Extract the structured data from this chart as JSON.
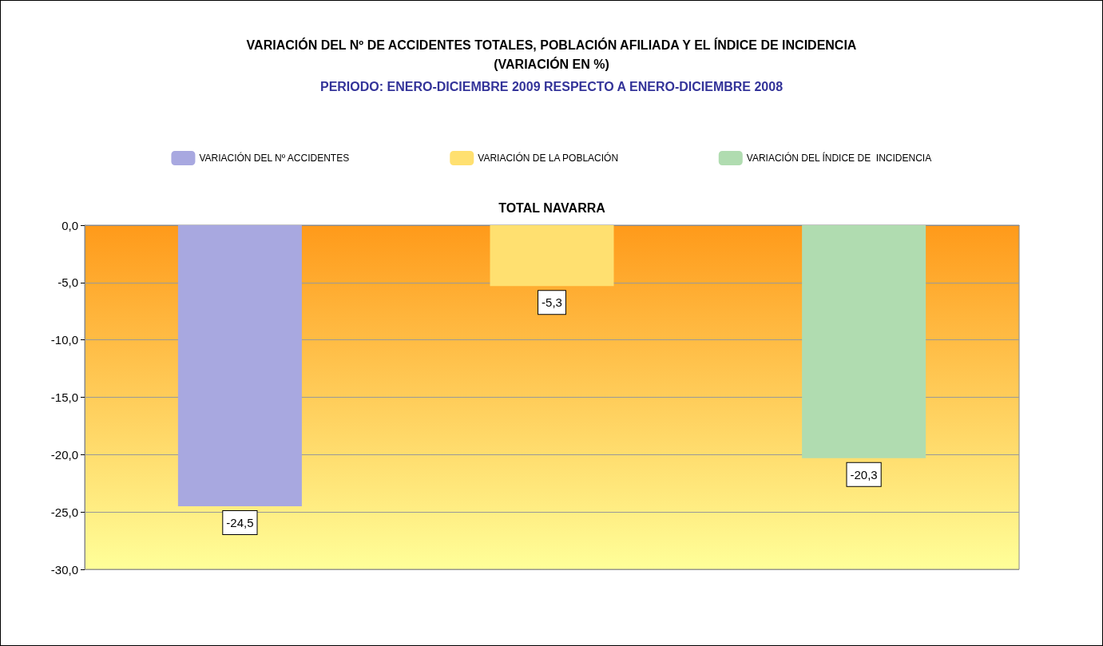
{
  "chart_data": {
    "type": "bar",
    "title": "VARIACIÓN DEL Nº DE ACCIDENTES TOTALES, POBLACIÓN AFILIADA Y EL ÍNDICE DE INCIDENCIA\n(VARIACIÓN EN %)",
    "subtitle": "PERIODO: ENERO-DICIEMBRE 2009 RESPECTO A ENERO-DICIEMBRE 2008",
    "categories": [
      "TOTAL NAVARRA"
    ],
    "series": [
      {
        "name": "VARIACIÓN DEL Nº ACCIDENTES",
        "color": "#a8a8e0",
        "values": [
          -24.5
        ],
        "value_labels": [
          "-24,5"
        ]
      },
      {
        "name": "VARIACIÓN DE LA POBLACIÓN",
        "color": "#ffe070",
        "values": [
          -5.3
        ],
        "value_labels": [
          "-5,3"
        ]
      },
      {
        "name": "VARIACIÓN DEL ÍNDICE DE  INCIDENCIA",
        "color": "#b0dcb0",
        "values": [
          -20.3
        ],
        "value_labels": [
          "-20,3"
        ]
      }
    ],
    "ylim": [
      -30,
      0
    ],
    "yticks": [
      {
        "value": -30,
        "label": "-30,0"
      },
      {
        "value": -25,
        "label": "-25,0"
      },
      {
        "value": -20,
        "label": "-20,0"
      },
      {
        "value": -15,
        "label": "-15,0"
      },
      {
        "value": -10,
        "label": "-10,0"
      },
      {
        "value": -5,
        "label": "-5,0"
      },
      {
        "value": 0,
        "label": "0,0"
      }
    ],
    "grid": "y",
    "legend": "top"
  }
}
